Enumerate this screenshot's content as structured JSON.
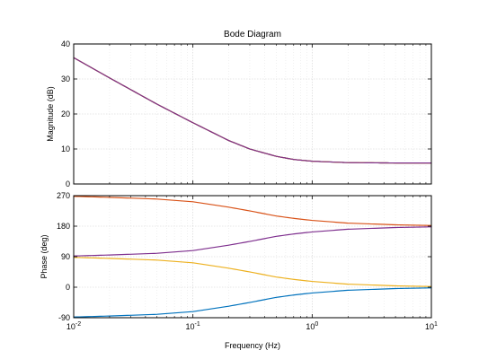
{
  "chart_data": {
    "type": "line",
    "title": "Bode Diagram",
    "xlabel": "Frequency  (Hz)",
    "xscale": "log",
    "xlim": [
      0.01,
      10
    ],
    "x_ticks": [
      {
        "base": "10",
        "exp": "-2"
      },
      {
        "base": "10",
        "exp": "-1"
      },
      {
        "base": "10",
        "exp": "0"
      },
      {
        "base": "10",
        "exp": "1"
      }
    ],
    "grid": true,
    "magnitude": {
      "ylabel": "Magnitude (dB)",
      "ylim": [
        0,
        40
      ],
      "yticks": [
        0,
        10,
        20,
        30,
        40
      ],
      "ytick_labels": [
        "0",
        "10",
        "20",
        "30",
        "40"
      ],
      "series": [
        {
          "color": "#0072bd",
          "x": [
            0.01,
            0.02,
            0.05,
            0.1,
            0.2,
            0.3,
            0.5,
            0.7,
            1,
            2,
            5,
            10
          ],
          "y": [
            36.1,
            30.3,
            22.8,
            17.5,
            12.4,
            10.0,
            7.9,
            7.0,
            6.5,
            6.1,
            6.0,
            6.0
          ]
        },
        {
          "color": "#d95319",
          "x": [
            0.01,
            0.02,
            0.05,
            0.1,
            0.2,
            0.3,
            0.5,
            0.7,
            1,
            2,
            5,
            10
          ],
          "y": [
            36.1,
            30.3,
            22.8,
            17.5,
            12.4,
            10.0,
            7.9,
            7.0,
            6.5,
            6.1,
            6.0,
            6.0
          ]
        },
        {
          "color": "#edb120",
          "x": [
            0.01,
            0.02,
            0.05,
            0.1,
            0.2,
            0.3,
            0.5,
            0.7,
            1,
            2,
            5,
            10
          ],
          "y": [
            36.1,
            30.3,
            22.8,
            17.5,
            12.4,
            10.0,
            7.9,
            7.0,
            6.5,
            6.1,
            6.0,
            6.0
          ]
        },
        {
          "color": "#7e2f8e",
          "x": [
            0.01,
            0.02,
            0.05,
            0.1,
            0.2,
            0.3,
            0.5,
            0.7,
            1,
            2,
            5,
            10
          ],
          "y": [
            36.1,
            30.3,
            22.8,
            17.5,
            12.4,
            10.0,
            7.9,
            7.0,
            6.5,
            6.1,
            6.0,
            6.0
          ]
        }
      ]
    },
    "phase": {
      "ylabel": "Phase (deg)",
      "ylim": [
        -90,
        270
      ],
      "yticks": [
        -90,
        0,
        90,
        180,
        270
      ],
      "ytick_labels": [
        "-90",
        "0",
        "90",
        "180",
        "270"
      ],
      "series": [
        {
          "color": "#0072bd",
          "x": [
            0.01,
            0.02,
            0.05,
            0.1,
            0.2,
            0.3,
            0.5,
            0.7,
            1,
            2,
            5,
            10
          ],
          "y": [
            -88,
            -85,
            -80,
            -72,
            -56,
            -45,
            -30,
            -23,
            -17,
            -9,
            -4,
            -2
          ]
        },
        {
          "color": "#d95319",
          "x": [
            0.01,
            0.02,
            0.05,
            0.1,
            0.2,
            0.3,
            0.5,
            0.7,
            1,
            2,
            5,
            10
          ],
          "y": [
            268,
            265,
            260,
            252,
            236,
            225,
            210,
            203,
            197,
            189,
            184,
            182
          ]
        },
        {
          "color": "#edb120",
          "x": [
            0.01,
            0.02,
            0.05,
            0.1,
            0.2,
            0.3,
            0.5,
            0.7,
            1,
            2,
            5,
            10
          ],
          "y": [
            88,
            85,
            80,
            72,
            56,
            45,
            30,
            23,
            17,
            9,
            4,
            2
          ]
        },
        {
          "color": "#7e2f8e",
          "x": [
            0.01,
            0.02,
            0.05,
            0.1,
            0.2,
            0.3,
            0.5,
            0.7,
            1,
            2,
            5,
            10
          ],
          "y": [
            92,
            95,
            100,
            108,
            124,
            135,
            150,
            157,
            163,
            171,
            176,
            178
          ]
        }
      ]
    }
  }
}
